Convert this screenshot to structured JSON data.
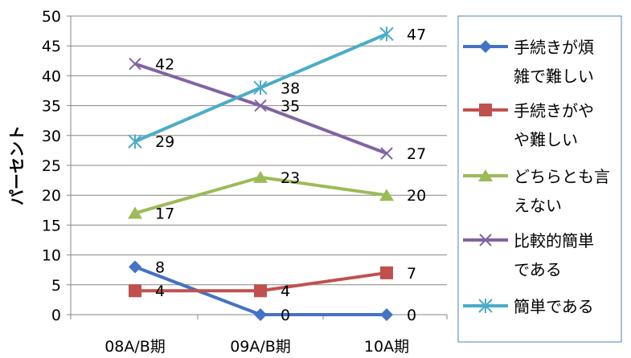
{
  "chart_data": {
    "type": "line",
    "categories": [
      "08A/B期",
      "09A/B期",
      "10A期"
    ],
    "ylabel": "パーセント",
    "ylim": [
      0,
      50
    ],
    "yticks": [
      0,
      5,
      10,
      15,
      20,
      25,
      30,
      35,
      40,
      45,
      50
    ],
    "grid": true,
    "legend_position": "right",
    "series": [
      {
        "name": "手続きが煩雑で難しい",
        "legend_lines": [
          "手続きが煩",
          "雑で難しい"
        ],
        "values": [
          8,
          0,
          0
        ],
        "color": "#4472C4",
        "marker": "diamond"
      },
      {
        "name": "手続きがやや難しい",
        "legend_lines": [
          "手続きがや",
          "や難しい"
        ],
        "values": [
          4,
          4,
          7
        ],
        "color": "#C0504D",
        "marker": "square"
      },
      {
        "name": "どちらとも言えない",
        "legend_lines": [
          "どちらとも言",
          "えない"
        ],
        "values": [
          17,
          23,
          20
        ],
        "color": "#9BBB59",
        "marker": "triangle"
      },
      {
        "name": "比較的簡単である",
        "legend_lines": [
          "比較的簡単",
          "である"
        ],
        "values": [
          42,
          35,
          27
        ],
        "color": "#8064A2",
        "marker": "x"
      },
      {
        "name": "簡単である",
        "legend_lines": [
          "簡単である"
        ],
        "values": [
          29,
          38,
          47
        ],
        "color": "#4BACC6",
        "marker": "star"
      }
    ]
  }
}
